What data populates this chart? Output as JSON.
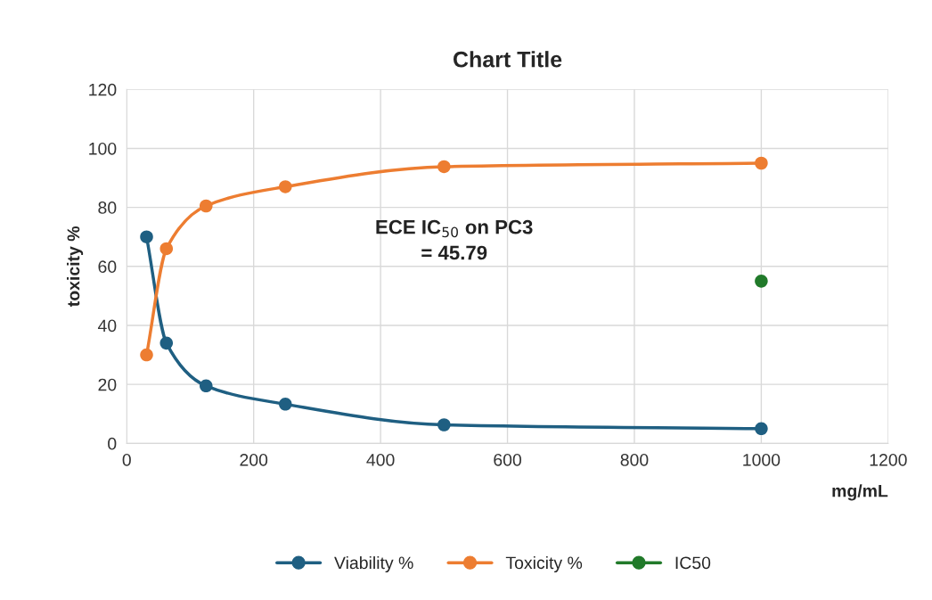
{
  "chart_data": {
    "type": "line",
    "title": "Chart Title",
    "xlabel": "mg/mL",
    "ylabel": "toxicity %",
    "annotations": [
      "ECE IC$_{50}$ on PC3\n= 45.79"
    ],
    "x": [
      31.25,
      62.5,
      125,
      250,
      500,
      1000
    ],
    "series": [
      {
        "name": "Viability %",
        "color": "#1f5f82",
        "values": [
          70,
          34,
          19.5,
          13.3,
          6.3,
          5
        ]
      },
      {
        "name": "Toxicity %",
        "color": "#ed7d31",
        "values": [
          30,
          66,
          80.5,
          87,
          93.8,
          95
        ]
      },
      {
        "name": "IC50",
        "color": "#217a2a",
        "x": [
          1000
        ],
        "values": [
          55
        ]
      }
    ],
    "xlim": [
      0,
      1200
    ],
    "xticks": [
      0,
      200,
      400,
      600,
      800,
      1000,
      1200
    ],
    "ylim": [
      0,
      120
    ],
    "yticks": [
      0,
      20,
      40,
      60,
      80,
      100,
      120
    ],
    "grid": true,
    "legend": "bottom",
    "marker": "circle",
    "line_style": "solid"
  }
}
